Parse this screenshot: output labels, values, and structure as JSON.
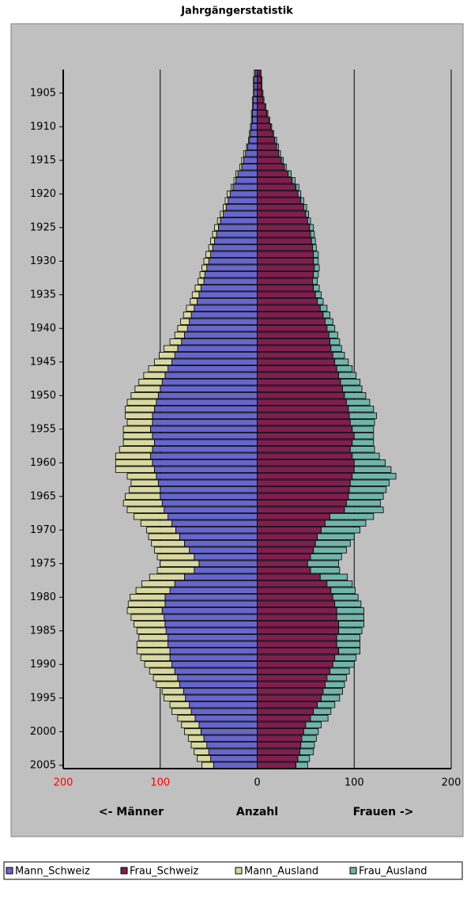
{
  "chart_data": {
    "type": "pyramid",
    "title": "Jahrgängerstatistik",
    "years": [
      1902,
      1903,
      1904,
      1905,
      1906,
      1907,
      1908,
      1909,
      1910,
      1911,
      1912,
      1913,
      1914,
      1915,
      1916,
      1917,
      1918,
      1919,
      1920,
      1921,
      1922,
      1923,
      1924,
      1925,
      1926,
      1927,
      1928,
      1929,
      1930,
      1931,
      1932,
      1933,
      1934,
      1935,
      1936,
      1937,
      1938,
      1939,
      1940,
      1941,
      1942,
      1943,
      1944,
      1945,
      1946,
      1947,
      1948,
      1949,
      1950,
      1951,
      1952,
      1953,
      1954,
      1955,
      1956,
      1957,
      1958,
      1959,
      1960,
      1961,
      1962,
      1963,
      1964,
      1965,
      1966,
      1967,
      1968,
      1969,
      1970,
      1971,
      1972,
      1973,
      1974,
      1975,
      1976,
      1977,
      1978,
      1979,
      1980,
      1981,
      1982,
      1983,
      1984,
      1985,
      1986,
      1987,
      1988,
      1989,
      1990,
      1991,
      1992,
      1993,
      1994,
      1995,
      1996,
      1997,
      1998,
      1999,
      2000,
      2001,
      2002,
      2003,
      2004,
      2005
    ],
    "series": [
      {
        "name": "Mann_Schweiz",
        "color": "#6666cc",
        "direction": "left",
        "stack": "m",
        "values": [
          2,
          3,
          3,
          3,
          4,
          4,
          5,
          5,
          6,
          7,
          8,
          10,
          12,
          14,
          16,
          20,
          22,
          25,
          28,
          30,
          32,
          35,
          38,
          40,
          42,
          44,
          46,
          48,
          50,
          52,
          54,
          55,
          58,
          60,
          62,
          65,
          68,
          70,
          72,
          75,
          78,
          82,
          85,
          88,
          92,
          95,
          98,
          100,
          102,
          104,
          106,
          108,
          108,
          110,
          108,
          106,
          108,
          110,
          108,
          106,
          104,
          102,
          100,
          100,
          98,
          96,
          92,
          88,
          84,
          80,
          75,
          70,
          65,
          60,
          65,
          75,
          85,
          90,
          95,
          95,
          98,
          96,
          95,
          94,
          92,
          92,
          90,
          90,
          88,
          85,
          82,
          80,
          76,
          74,
          70,
          68,
          64,
          60,
          58,
          55,
          52,
          50,
          48,
          45
        ]
      },
      {
        "name": "Frau_Schweiz",
        "color": "#7f1f4f",
        "direction": "right",
        "stack": "f",
        "values": [
          3,
          4,
          4,
          5,
          6,
          8,
          10,
          12,
          14,
          16,
          18,
          20,
          22,
          25,
          28,
          32,
          36,
          40,
          42,
          45,
          48,
          50,
          52,
          54,
          55,
          56,
          57,
          58,
          58,
          59,
          58,
          57,
          58,
          60,
          62,
          65,
          68,
          70,
          72,
          74,
          75,
          76,
          78,
          80,
          82,
          84,
          86,
          88,
          90,
          92,
          94,
          95,
          96,
          98,
          100,
          98,
          96,
          98,
          100,
          100,
          98,
          96,
          95,
          94,
          92,
          90,
          75,
          70,
          66,
          62,
          60,
          58,
          55,
          52,
          55,
          65,
          72,
          76,
          78,
          80,
          82,
          82,
          84,
          84,
          82,
          82,
          84,
          80,
          78,
          75,
          72,
          70,
          68,
          66,
          62,
          58,
          55,
          50,
          48,
          46,
          45,
          44,
          42,
          40
        ]
      },
      {
        "name": "Mann_Ausland",
        "color": "#d8d8a0",
        "direction": "left",
        "stack": "m",
        "values": [
          1,
          1,
          1,
          1,
          1,
          1,
          1,
          1,
          1,
          1,
          1,
          1,
          2,
          2,
          2,
          2,
          2,
          2,
          3,
          3,
          3,
          3,
          3,
          4,
          4,
          4,
          4,
          5,
          5,
          5,
          5,
          6,
          6,
          7,
          7,
          8,
          8,
          9,
          10,
          10,
          12,
          14,
          16,
          18,
          20,
          22,
          24,
          26,
          28,
          30,
          30,
          28,
          26,
          28,
          30,
          32,
          34,
          36,
          38,
          40,
          30,
          28,
          32,
          36,
          40,
          38,
          35,
          32,
          30,
          32,
          34,
          36,
          38,
          40,
          38,
          36,
          34,
          35,
          36,
          38,
          36,
          34,
          32,
          30,
          30,
          32,
          34,
          30,
          28,
          26,
          25,
          24,
          22,
          22,
          20,
          20,
          18,
          18,
          17,
          16,
          16,
          15,
          14,
          12
        ]
      },
      {
        "name": "Frau_Ausland",
        "color": "#70b4aa",
        "direction": "right",
        "stack": "f",
        "values": [
          1,
          1,
          1,
          1,
          1,
          1,
          1,
          1,
          1,
          1,
          2,
          2,
          2,
          2,
          2,
          3,
          3,
          3,
          3,
          3,
          3,
          3,
          3,
          4,
          4,
          4,
          4,
          5,
          5,
          5,
          5,
          5,
          6,
          6,
          6,
          7,
          7,
          8,
          8,
          9,
          10,
          11,
          12,
          14,
          16,
          18,
          20,
          20,
          22,
          24,
          26,
          28,
          25,
          22,
          20,
          22,
          25,
          28,
          32,
          38,
          45,
          40,
          38,
          36,
          35,
          40,
          45,
          42,
          40,
          38,
          36,
          34,
          32,
          32,
          30,
          28,
          26,
          25,
          26,
          27,
          28,
          28,
          26,
          24,
          24,
          24,
          22,
          22,
          22,
          20,
          20,
          20,
          20,
          19,
          18,
          18,
          18,
          16,
          15,
          15,
          14,
          14,
          12,
          12
        ]
      }
    ],
    "ylim": [
      1901.5,
      2005.5
    ],
    "yticks": [
      1905,
      1910,
      1915,
      1920,
      1925,
      1930,
      1935,
      1940,
      1945,
      1950,
      1955,
      1960,
      1965,
      1970,
      1975,
      1980,
      1985,
      1990,
      1995,
      2000,
      2005
    ],
    "xlim": [
      -200,
      200
    ],
    "xticks": [
      {
        "value": -200,
        "label": "200"
      },
      {
        "value": -100,
        "label": "100"
      },
      0,
      100,
      200
    ],
    "left_tick_color": "#ff0000",
    "grid": true,
    "annotations": [
      "<-  Männer",
      "Anzahl",
      "Frauen  ->"
    ],
    "legend": "bottom"
  }
}
